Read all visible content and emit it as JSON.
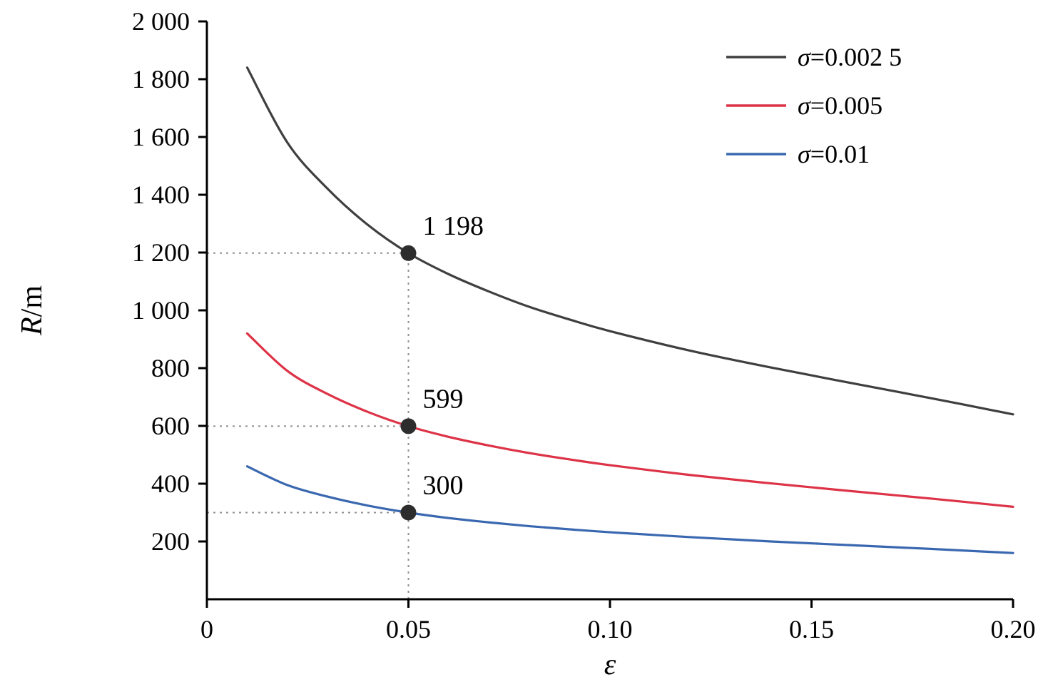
{
  "chart_data": {
    "type": "line",
    "title": "",
    "xlabel": {
      "italic": "ε"
    },
    "ylabel": {
      "italic": "R",
      "normal": "/m"
    },
    "xlim": [
      0,
      0.2
    ],
    "ylim": [
      0,
      2000
    ],
    "grid": false,
    "xticks": {
      "values": [
        0,
        0.05,
        0.1,
        0.15,
        0.2
      ],
      "labels": [
        "0",
        "0.05",
        "0.10",
        "0.15",
        "0.20"
      ]
    },
    "yticks": {
      "values": [
        200,
        400,
        600,
        800,
        1000,
        1200,
        1400,
        1600,
        1800,
        2000
      ],
      "labels": [
        "200",
        "400",
        "600",
        "800",
        "1 000",
        "1 200",
        "1 400",
        "1 600",
        "1 800",
        "2 000"
      ]
    },
    "series": [
      {
        "name": "σ=0.002 5",
        "color": "#3f3f3f",
        "x": [
          0.01,
          0.02,
          0.03,
          0.04,
          0.05,
          0.06,
          0.07,
          0.08,
          0.09,
          0.1,
          0.12,
          0.14,
          0.16,
          0.18,
          0.2
        ],
        "y": [
          1840,
          1580,
          1420,
          1295,
          1198,
          1125,
          1065,
          1012,
          968,
          928,
          860,
          802,
          748,
          695,
          640
        ]
      },
      {
        "name": "σ=0.005",
        "color": "#dd3347",
        "x": [
          0.01,
          0.02,
          0.03,
          0.04,
          0.05,
          0.06,
          0.07,
          0.08,
          0.09,
          0.1,
          0.12,
          0.14,
          0.16,
          0.18,
          0.2
        ],
        "y": [
          920,
          790,
          710,
          648,
          599,
          562,
          532,
          506,
          484,
          464,
          430,
          401,
          374,
          348,
          320
        ]
      },
      {
        "name": "σ=0.01",
        "color": "#3a68b0",
        "x": [
          0.01,
          0.02,
          0.03,
          0.04,
          0.05,
          0.06,
          0.07,
          0.08,
          0.09,
          0.1,
          0.12,
          0.14,
          0.16,
          0.18,
          0.2
        ],
        "y": [
          460,
          395,
          355,
          324,
          300,
          281,
          266,
          253,
          242,
          232,
          215,
          200,
          187,
          174,
          160
        ]
      }
    ],
    "legend": {
      "position": "top-right",
      "entries": [
        {
          "sym": "σ",
          "rest": "=0.002 5",
          "color": "#3f3f3f"
        },
        {
          "sym": "σ",
          "rest": "=0.005",
          "color": "#dd3347"
        },
        {
          "sym": "σ",
          "rest": "=0.01",
          "color": "#3a68b0"
        }
      ]
    },
    "annotations": [
      {
        "x": 0.05,
        "y": 1198,
        "label": "1 198"
      },
      {
        "x": 0.05,
        "y": 599,
        "label": "599"
      },
      {
        "x": 0.05,
        "y": 300,
        "label": "300"
      }
    ],
    "guide_color": "#909090",
    "marker_color": "#2d2d2d",
    "axis_color": "#000000"
  }
}
